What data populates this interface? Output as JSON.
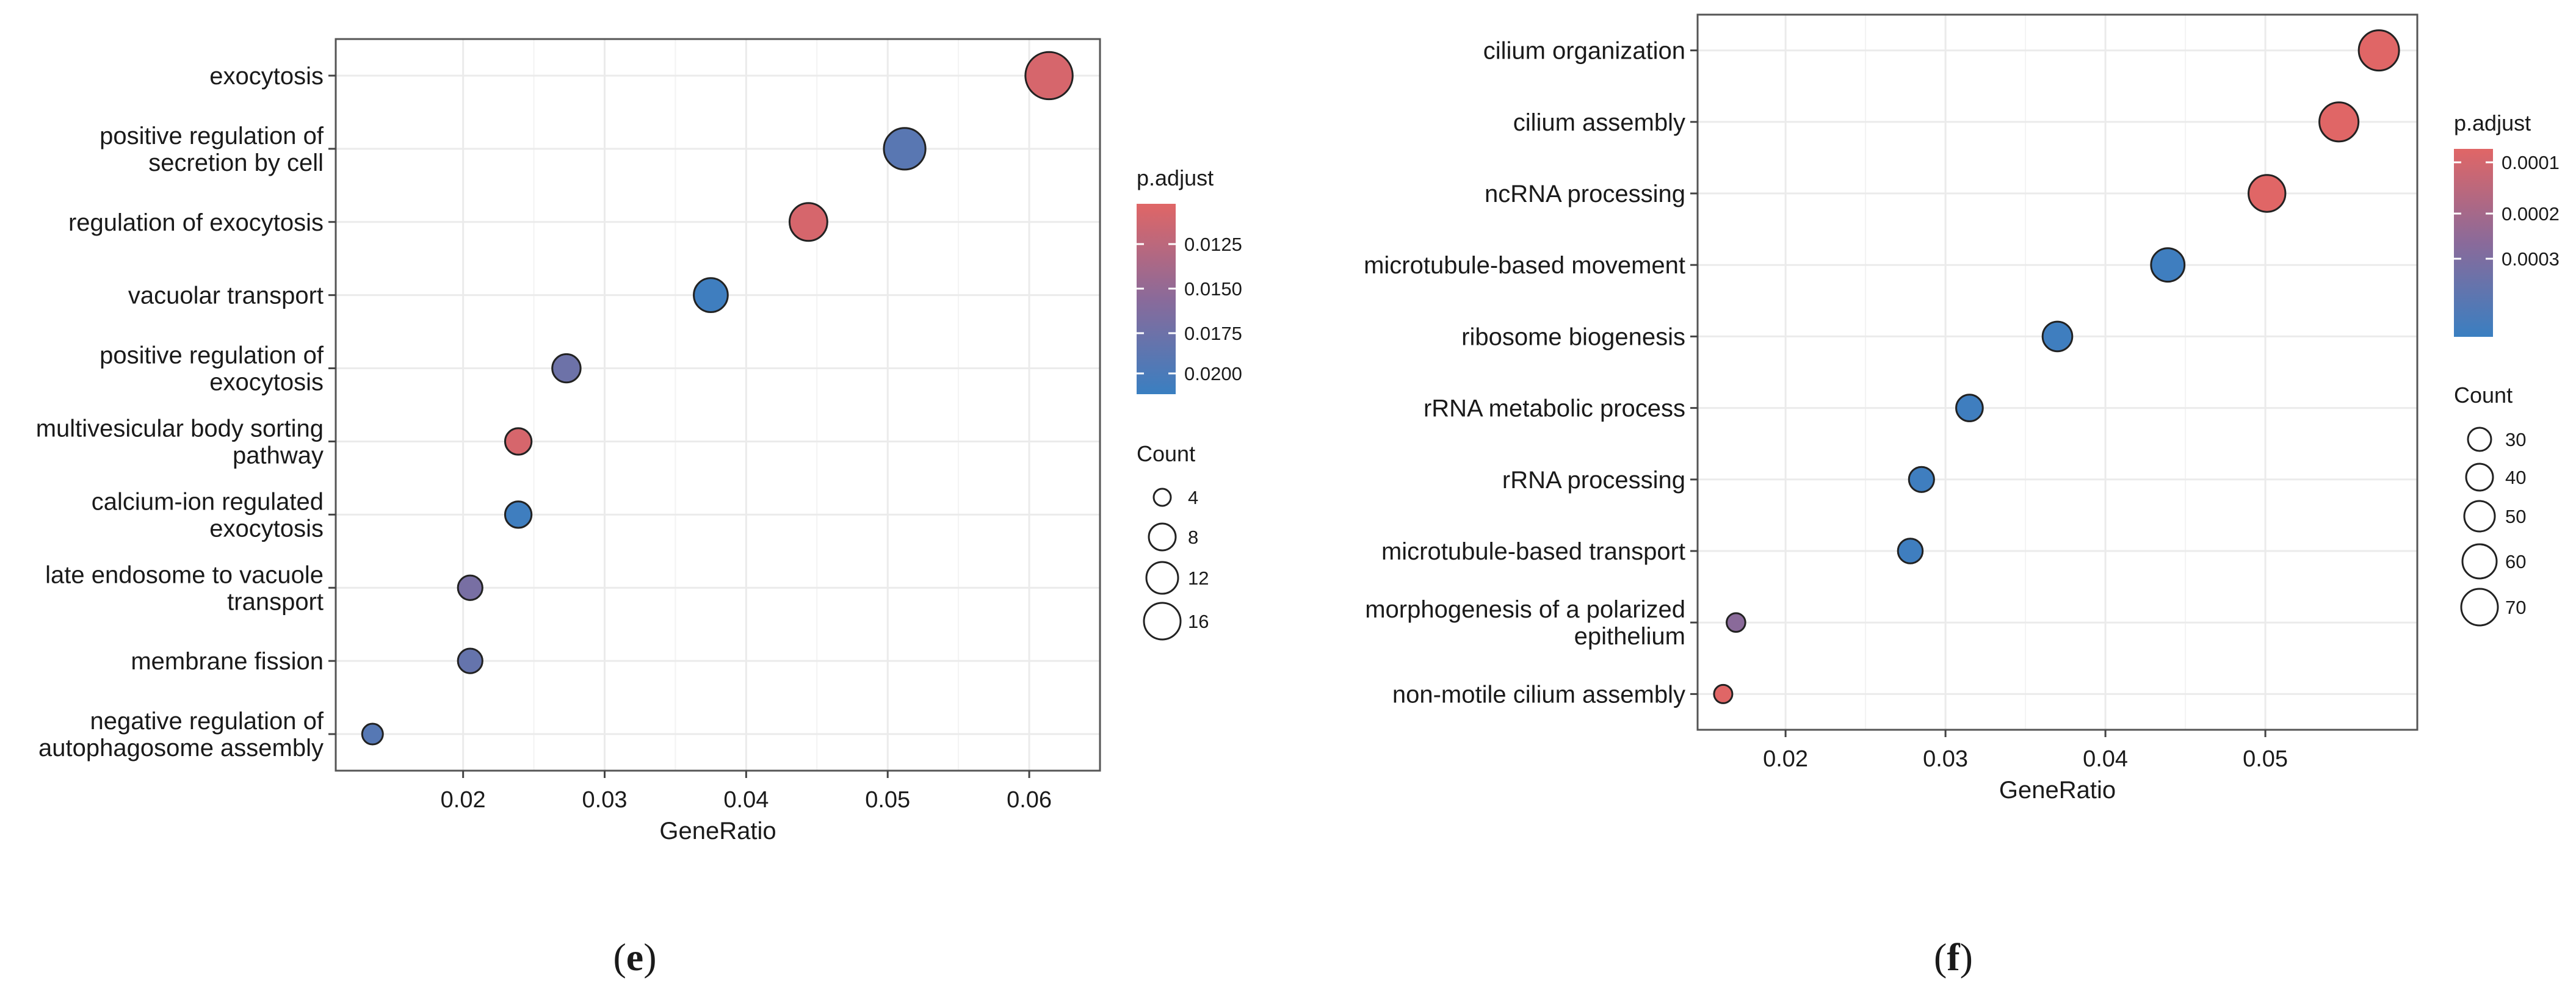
{
  "chart_data": [
    {
      "panel": "e",
      "type": "scatter",
      "title": "",
      "xlabel": "GeneRatio",
      "ylabel": "",
      "xlim": [
        0.011,
        0.065
      ],
      "xticks": [
        0.02,
        0.03,
        0.04,
        0.05,
        0.06
      ],
      "xtick_labels": [
        "0.02",
        "0.03",
        "0.04",
        "0.05",
        "0.06"
      ],
      "grid": true,
      "categories": [
        [
          "exocytosis"
        ],
        [
          "positive regulation of",
          "secretion by cell"
        ],
        [
          "regulation of exocytosis"
        ],
        [
          "vacuolar transport"
        ],
        [
          "positive regulation of",
          "exocytosis"
        ],
        [
          "multivesicular body sorting",
          "pathway"
        ],
        [
          "calcium-ion regulated",
          "exocytosis"
        ],
        [
          "late endosome to vacuole",
          "transport"
        ],
        [
          "membrane fission"
        ],
        [
          "negative regulation of",
          "autophagosome assembly"
        ]
      ],
      "gene_ratio": [
        0.0614,
        0.0512,
        0.0444,
        0.0375,
        0.0273,
        0.0239,
        0.0239,
        0.0205,
        0.0205,
        0.0136
      ],
      "count": [
        18,
        15,
        13,
        11,
        8,
        7,
        7,
        6,
        6,
        4
      ],
      "p_adjust": [
        0.011,
        0.0188,
        0.011,
        0.0205,
        0.0175,
        0.011,
        0.0205,
        0.0168,
        0.018,
        0.019
      ],
      "color_legend": {
        "title": "p.adjust",
        "range": [
          0.0104,
          0.0208
        ],
        "ticks": [
          0.0125,
          0.015,
          0.0175,
          0.02
        ],
        "tick_labels": [
          "0.0125",
          "0.0150",
          "0.0175",
          "0.0200"
        ],
        "low_color": "#e06666",
        "high_color": "#3a7fc1"
      },
      "size_legend": {
        "title": "Count",
        "values": [
          4,
          8,
          12,
          16
        ],
        "labels": [
          "4",
          "8",
          "12",
          "16"
        ]
      },
      "caption": "(e)"
    },
    {
      "panel": "f",
      "type": "scatter",
      "title": "",
      "xlabel": "GeneRatio",
      "ylabel": "",
      "xlim": [
        0.0145,
        0.0595
      ],
      "xticks": [
        0.02,
        0.03,
        0.04,
        0.05
      ],
      "xtick_labels": [
        "0.02",
        "0.03",
        "0.04",
        "0.05"
      ],
      "grid": true,
      "categories": [
        [
          "cilium organization"
        ],
        [
          "cilium assembly"
        ],
        [
          "ncRNA processing"
        ],
        [
          "microtubule-based movement"
        ],
        [
          "ribosome biogenesis"
        ],
        [
          "rRNA metabolic process"
        ],
        [
          "rRNA processing"
        ],
        [
          "microtubule-based transport"
        ],
        [
          "morphogenesis of a polarized",
          "epithelium"
        ],
        [
          "non-motile cilium assembly"
        ]
      ],
      "gene_ratio": [
        0.0571,
        0.0546,
        0.0501,
        0.0439,
        0.037,
        0.0315,
        0.0285,
        0.0278,
        0.0169,
        0.0161
      ],
      "count": [
        81,
        78,
        72,
        63,
        53,
        45,
        41,
        40,
        24,
        23
      ],
      "p_adjust": [
        1e-05,
        1e-05,
        1e-05,
        0.00034,
        0.00034,
        0.00034,
        0.00034,
        0.00034,
        0.00018,
        1e-05
      ],
      "color_legend": {
        "title": "p.adjust",
        "range": [
          1e-05,
          0.00035
        ],
        "ticks": [
          0.0001,
          0.0002,
          0.0003
        ],
        "tick_labels": [
          "0.0001",
          "0.0002",
          "0.0003"
        ],
        "low_color": "#e06666",
        "high_color": "#3a7fc1"
      },
      "size_legend": {
        "title": "Count",
        "values": [
          30,
          40,
          50,
          60,
          70
        ],
        "labels": [
          "30",
          "40",
          "50",
          "60",
          "70"
        ]
      },
      "caption": "(f)"
    }
  ]
}
